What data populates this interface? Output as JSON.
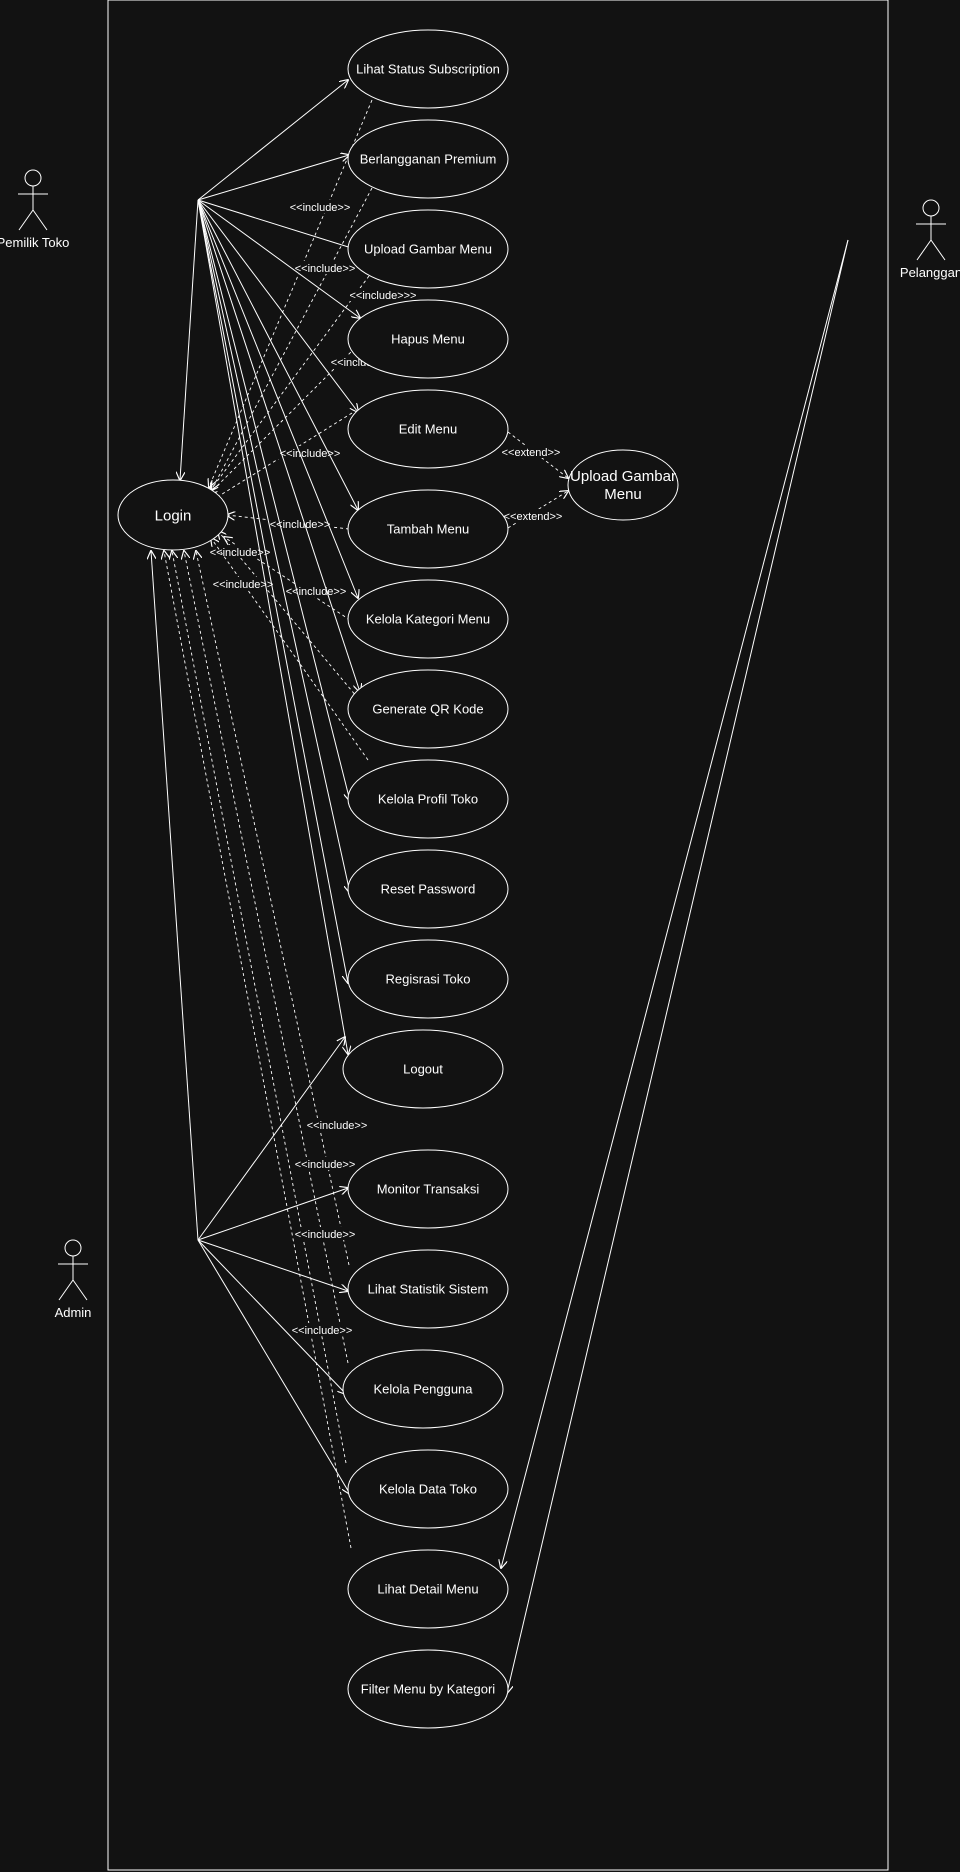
{
  "colors": {
    "background": "#121212",
    "stroke": "#ffffff"
  },
  "actors": [
    {
      "id": "pemilik",
      "label": "Pemilik Toko"
    },
    {
      "id": "pelanggan",
      "label": "Pelanggan"
    },
    {
      "id": "admin",
      "label": "Admin"
    }
  ],
  "use_cases": [
    {
      "id": "login",
      "label": "Login"
    },
    {
      "id": "lihat_status",
      "label": "Lihat Status Subscription"
    },
    {
      "id": "berlangganan",
      "label": "Berlangganan Premium"
    },
    {
      "id": "upload_gambar",
      "label": "Upload Gambar Menu"
    },
    {
      "id": "hapus_menu",
      "label": "Hapus Menu"
    },
    {
      "id": "edit_menu",
      "label": "Edit Menu"
    },
    {
      "id": "upload_gambar_ext",
      "label": "Upload Gambar Menu"
    },
    {
      "id": "tambah_menu",
      "label": "Tambah Menu"
    },
    {
      "id": "kelola_kategori",
      "label": "Kelola Kategori Menu"
    },
    {
      "id": "generate_qr",
      "label": "Generate QR Kode"
    },
    {
      "id": "kelola_profil",
      "label": "Kelola Profil Toko"
    },
    {
      "id": "reset_password",
      "label": "Reset Password"
    },
    {
      "id": "registrasi",
      "label": "Regisrasi Toko"
    },
    {
      "id": "logout",
      "label": "Logout"
    },
    {
      "id": "monitor",
      "label": "Monitor Transaksi"
    },
    {
      "id": "statistik",
      "label": "Lihat Statistik Sistem"
    },
    {
      "id": "kelola_pengguna",
      "label": "Kelola Pengguna"
    },
    {
      "id": "kelola_data_toko",
      "label": "Kelola Data Toko"
    },
    {
      "id": "lihat_detail",
      "label": "Lihat Detail Menu"
    },
    {
      "id": "filter_menu",
      "label": "Filter Menu by Kategori"
    }
  ],
  "associations": [
    {
      "from": "pemilik",
      "to": "login"
    },
    {
      "from": "pemilik",
      "to": "lihat_status"
    },
    {
      "from": "pemilik",
      "to": "berlangganan"
    },
    {
      "from": "pemilik",
      "to": "upload_gambar"
    },
    {
      "from": "pemilik",
      "to": "hapus_menu"
    },
    {
      "from": "pemilik",
      "to": "edit_menu"
    },
    {
      "from": "pemilik",
      "to": "tambah_menu"
    },
    {
      "from": "pemilik",
      "to": "kelola_kategori"
    },
    {
      "from": "pemilik",
      "to": "generate_qr"
    },
    {
      "from": "pemilik",
      "to": "kelola_profil"
    },
    {
      "from": "pemilik",
      "to": "reset_password"
    },
    {
      "from": "pemilik",
      "to": "registrasi"
    },
    {
      "from": "pemilik",
      "to": "logout"
    },
    {
      "from": "admin",
      "to": "login"
    },
    {
      "from": "admin",
      "to": "logout"
    },
    {
      "from": "admin",
      "to": "monitor"
    },
    {
      "from": "admin",
      "to": "statistik"
    },
    {
      "from": "admin",
      "to": "kelola_pengguna"
    },
    {
      "from": "admin",
      "to": "kelola_data_toko"
    },
    {
      "from": "pelanggan",
      "to": "lihat_detail"
    },
    {
      "from": "pelanggan",
      "to": "filter_menu"
    }
  ],
  "dependencies": [
    {
      "from": "lihat_status",
      "to": "login",
      "label": "<<include>>"
    },
    {
      "from": "berlangganan",
      "to": "login",
      "label": "<<include>>"
    },
    {
      "from": "upload_gambar",
      "to": "login",
      "label": "<<include>>>"
    },
    {
      "from": "hapus_menu",
      "to": "login",
      "label": "<<include>>"
    },
    {
      "from": "edit_menu",
      "to": "login",
      "label": "<<include>>"
    },
    {
      "from": "tambah_menu",
      "to": "login",
      "label": "<<include>>"
    },
    {
      "from": "kelola_kategori",
      "to": "login",
      "label": "<<include>>"
    },
    {
      "from": "generate_qr",
      "to": "login",
      "label": "<<include>>"
    },
    {
      "from": "kelola_profil",
      "to": "login",
      "label": "<<include>>"
    },
    {
      "from": "edit_menu",
      "to": "upload_gambar_ext",
      "label": "<<extend>>"
    },
    {
      "from": "tambah_menu",
      "to": "upload_gambar_ext",
      "label": "<<extend>>"
    },
    {
      "from": "monitor",
      "to": "login",
      "label": "<<include>>"
    },
    {
      "from": "statistik",
      "to": "login",
      "label": "<<include>>"
    },
    {
      "from": "kelola_pengguna",
      "to": "login",
      "label": "<<include>>"
    },
    {
      "from": "kelola_data_toko",
      "to": "login",
      "label": "<<include>>"
    }
  ]
}
